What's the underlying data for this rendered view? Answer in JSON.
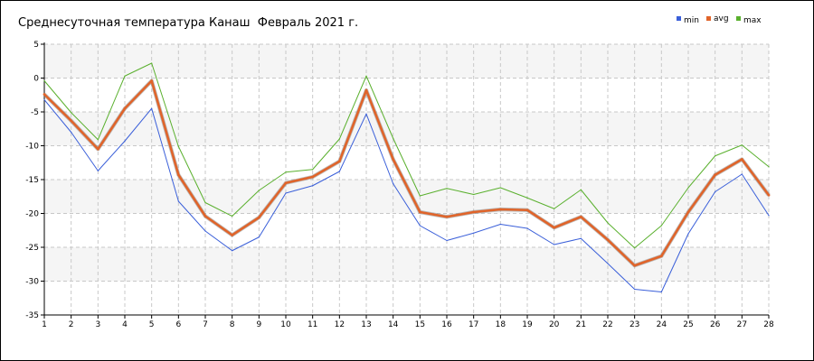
{
  "chart_data": {
    "type": "line",
    "title": "Среднесуточная температура Канаш  Февраль 2021 г.",
    "x": [
      1,
      2,
      3,
      4,
      5,
      6,
      7,
      8,
      9,
      10,
      11,
      12,
      13,
      14,
      15,
      16,
      17,
      18,
      19,
      20,
      21,
      22,
      23,
      24,
      25,
      26,
      27,
      28
    ],
    "ylim": [
      -35,
      5
    ],
    "yticks": [
      5,
      0,
      -5,
      -10,
      -15,
      -20,
      -25,
      -30,
      -35
    ],
    "grid": true,
    "legend_position": "top-right",
    "series": [
      {
        "name": "min",
        "color": "#3a5fd9",
        "values": [
          -3.2,
          -8.0,
          -13.7,
          -9.3,
          -4.5,
          -18.2,
          -22.6,
          -25.5,
          -23.5,
          -17.0,
          -15.9,
          -13.8,
          -5.3,
          -15.6,
          -21.8,
          -24.0,
          -22.9,
          -21.6,
          -22.2,
          -24.6,
          -23.7,
          -27.4,
          -31.2,
          -31.6,
          -23.0,
          -16.8,
          -14.2,
          -20.3
        ]
      },
      {
        "name": "avg",
        "color": "#e0642a",
        "values": [
          -2.4,
          -6.3,
          -10.5,
          -4.5,
          -0.4,
          -14.3,
          -20.4,
          -23.2,
          -20.6,
          -15.5,
          -14.6,
          -12.3,
          -1.8,
          -12.0,
          -19.8,
          -20.5,
          -19.8,
          -19.4,
          -19.5,
          -22.1,
          -20.5,
          -23.9,
          -27.7,
          -26.3,
          -19.8,
          -14.3,
          -12.0,
          -17.3
        ]
      },
      {
        "name": "max",
        "color": "#5ab02e",
        "values": [
          -0.4,
          -5.1,
          -9.1,
          0.3,
          2.2,
          -10.1,
          -18.4,
          -20.4,
          -16.6,
          -13.9,
          -13.5,
          -9.0,
          0.3,
          -8.9,
          -17.4,
          -16.3,
          -17.2,
          -16.2,
          -17.7,
          -19.3,
          -16.5,
          -21.4,
          -25.1,
          -21.8,
          -16.2,
          -11.5,
          -9.9,
          -13.1
        ]
      }
    ]
  }
}
